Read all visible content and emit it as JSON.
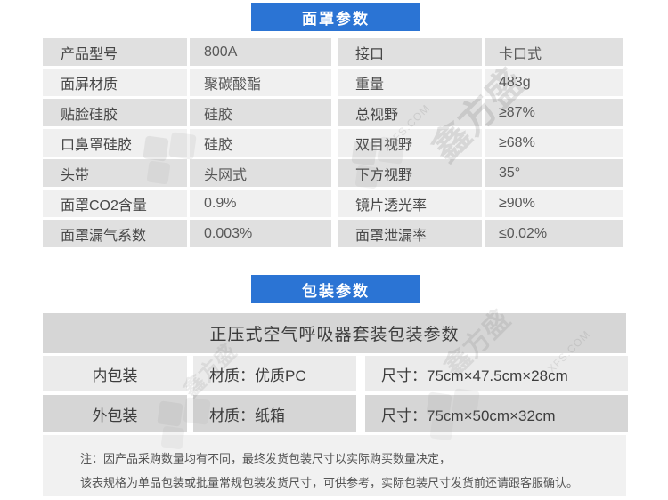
{
  "accent_color": "#2b74d4",
  "row_colors": {
    "dark": "#e0e0e0",
    "light": "#f0f0f0",
    "pkg_dark": "#d6d6d6",
    "pkg_light": "#ebebeb",
    "note_bg": "#f1f1f1"
  },
  "mask_section": {
    "title": "面罩参数",
    "left_rows": [
      {
        "label": "产品型号",
        "value": "800A"
      },
      {
        "label": "面屏材质",
        "value": "聚碳酸酯"
      },
      {
        "label": "贴脸硅胶",
        "value": "硅胶"
      },
      {
        "label": "口鼻罩硅胶",
        "value": "硅胶"
      },
      {
        "label": "头带",
        "value": "头网式"
      },
      {
        "label": "面罩CO2含量",
        "value": "0.9%"
      },
      {
        "label": "面罩漏气系数",
        "value": "0.003%"
      }
    ],
    "right_rows": [
      {
        "label": "接口",
        "value": "卡口式"
      },
      {
        "label": "重量",
        "value": "483g"
      },
      {
        "label": "总视野",
        "value": "≥87%"
      },
      {
        "label": "双目视野",
        "value": "≥68%"
      },
      {
        "label": "下方视野",
        "value": "35°"
      },
      {
        "label": "镜片透光率",
        "value": "≥90%"
      },
      {
        "label": "面罩泄漏率",
        "value": "≤0.02%"
      }
    ]
  },
  "packaging_section": {
    "title": "包装参数",
    "table_title": "正压式空气呼吸器套装包装参数",
    "rows": [
      {
        "name": "内包装",
        "material": "材质：优质PC",
        "size": "尺寸：75cm×47.5cm×28cm"
      },
      {
        "name": "外包装",
        "material": "材质：纸箱",
        "size": "尺寸：75cm×50cm×32cm"
      }
    ],
    "note_line1": "注：因产品采购数量均有不同，最终发货包装尺寸以实际购买数量决定，",
    "note_line2": "该表规格为单品包装或批量常规包装发货尺寸，可供参考，实际包装尺寸发货前还请跟客服确认。"
  },
  "watermark": {
    "brand": "鑫方盛",
    "domain": "XFS.COM"
  }
}
